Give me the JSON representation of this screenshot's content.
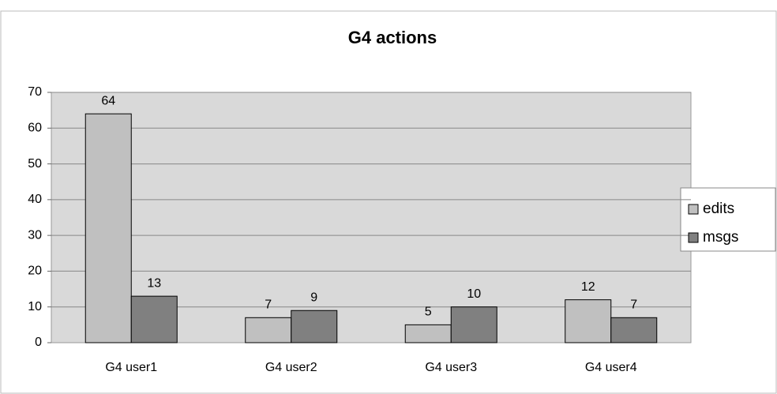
{
  "chart_data": {
    "type": "bar",
    "title": "G4 actions",
    "categories": [
      "G4 user1",
      "G4 user2",
      "G4 user3",
      "G4 user4"
    ],
    "series": [
      {
        "name": "edits",
        "color": "#c0c0c0",
        "values": [
          64,
          7,
          5,
          12
        ]
      },
      {
        "name": "msgs",
        "color": "#808080",
        "values": [
          13,
          9,
          10,
          7
        ]
      }
    ],
    "ylim": [
      0,
      70
    ],
    "yticks": [
      0,
      10,
      20,
      30,
      40,
      50,
      60,
      70
    ],
    "grid": true,
    "legend": "right"
  }
}
